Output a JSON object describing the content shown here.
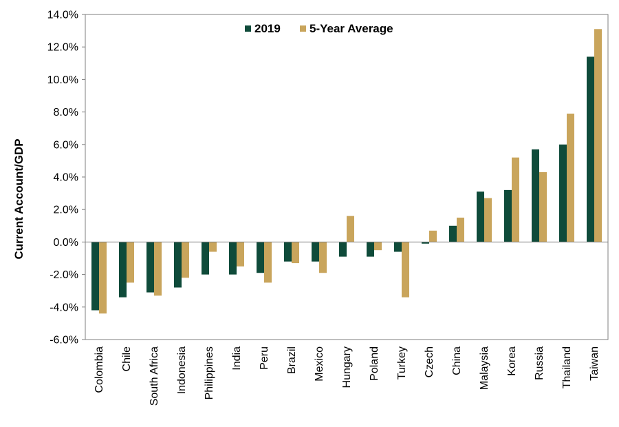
{
  "chart_data": {
    "type": "bar",
    "title": "",
    "xlabel": "",
    "ylabel": "Current Account/GDP",
    "ylim": [
      -6,
      14
    ],
    "yticks": [
      -6,
      -4,
      -2,
      0,
      2,
      4,
      6,
      8,
      10,
      12,
      14
    ],
    "ytick_labels": [
      "-6.0%",
      "-4.0%",
      "-2.0%",
      "0.0%",
      "2.0%",
      "4.0%",
      "6.0%",
      "8.0%",
      "10.0%",
      "12.0%",
      "14.0%"
    ],
    "y_unit": "%",
    "categories": [
      "Colombia",
      "Chile",
      "South Africa",
      "Indonesia",
      "Philippines",
      "India",
      "Peru",
      "Brazil",
      "Mexico",
      "Hungary",
      "Poland",
      "Turkey",
      "Czech",
      "China",
      "Malaysia",
      "Korea",
      "Russia",
      "Thailand",
      "Taiwan"
    ],
    "series": [
      {
        "name": "2019",
        "color": "#0f4b3a",
        "values": [
          -4.2,
          -3.4,
          -3.1,
          -2.8,
          -2.0,
          -2.0,
          -1.9,
          -1.2,
          -1.2,
          -0.9,
          -0.9,
          -0.6,
          -0.1,
          1.0,
          3.1,
          3.2,
          5.7,
          6.0,
          11.4
        ]
      },
      {
        "name": "5-Year Average",
        "color": "#c9a55c",
        "values": [
          -4.4,
          -2.5,
          -3.3,
          -2.2,
          -0.6,
          -1.5,
          -2.5,
          -1.3,
          -1.9,
          1.6,
          -0.5,
          -3.4,
          0.7,
          1.5,
          2.7,
          5.2,
          4.3,
          7.9,
          13.1
        ]
      }
    ],
    "grid": false,
    "legend_position": "top-center"
  }
}
